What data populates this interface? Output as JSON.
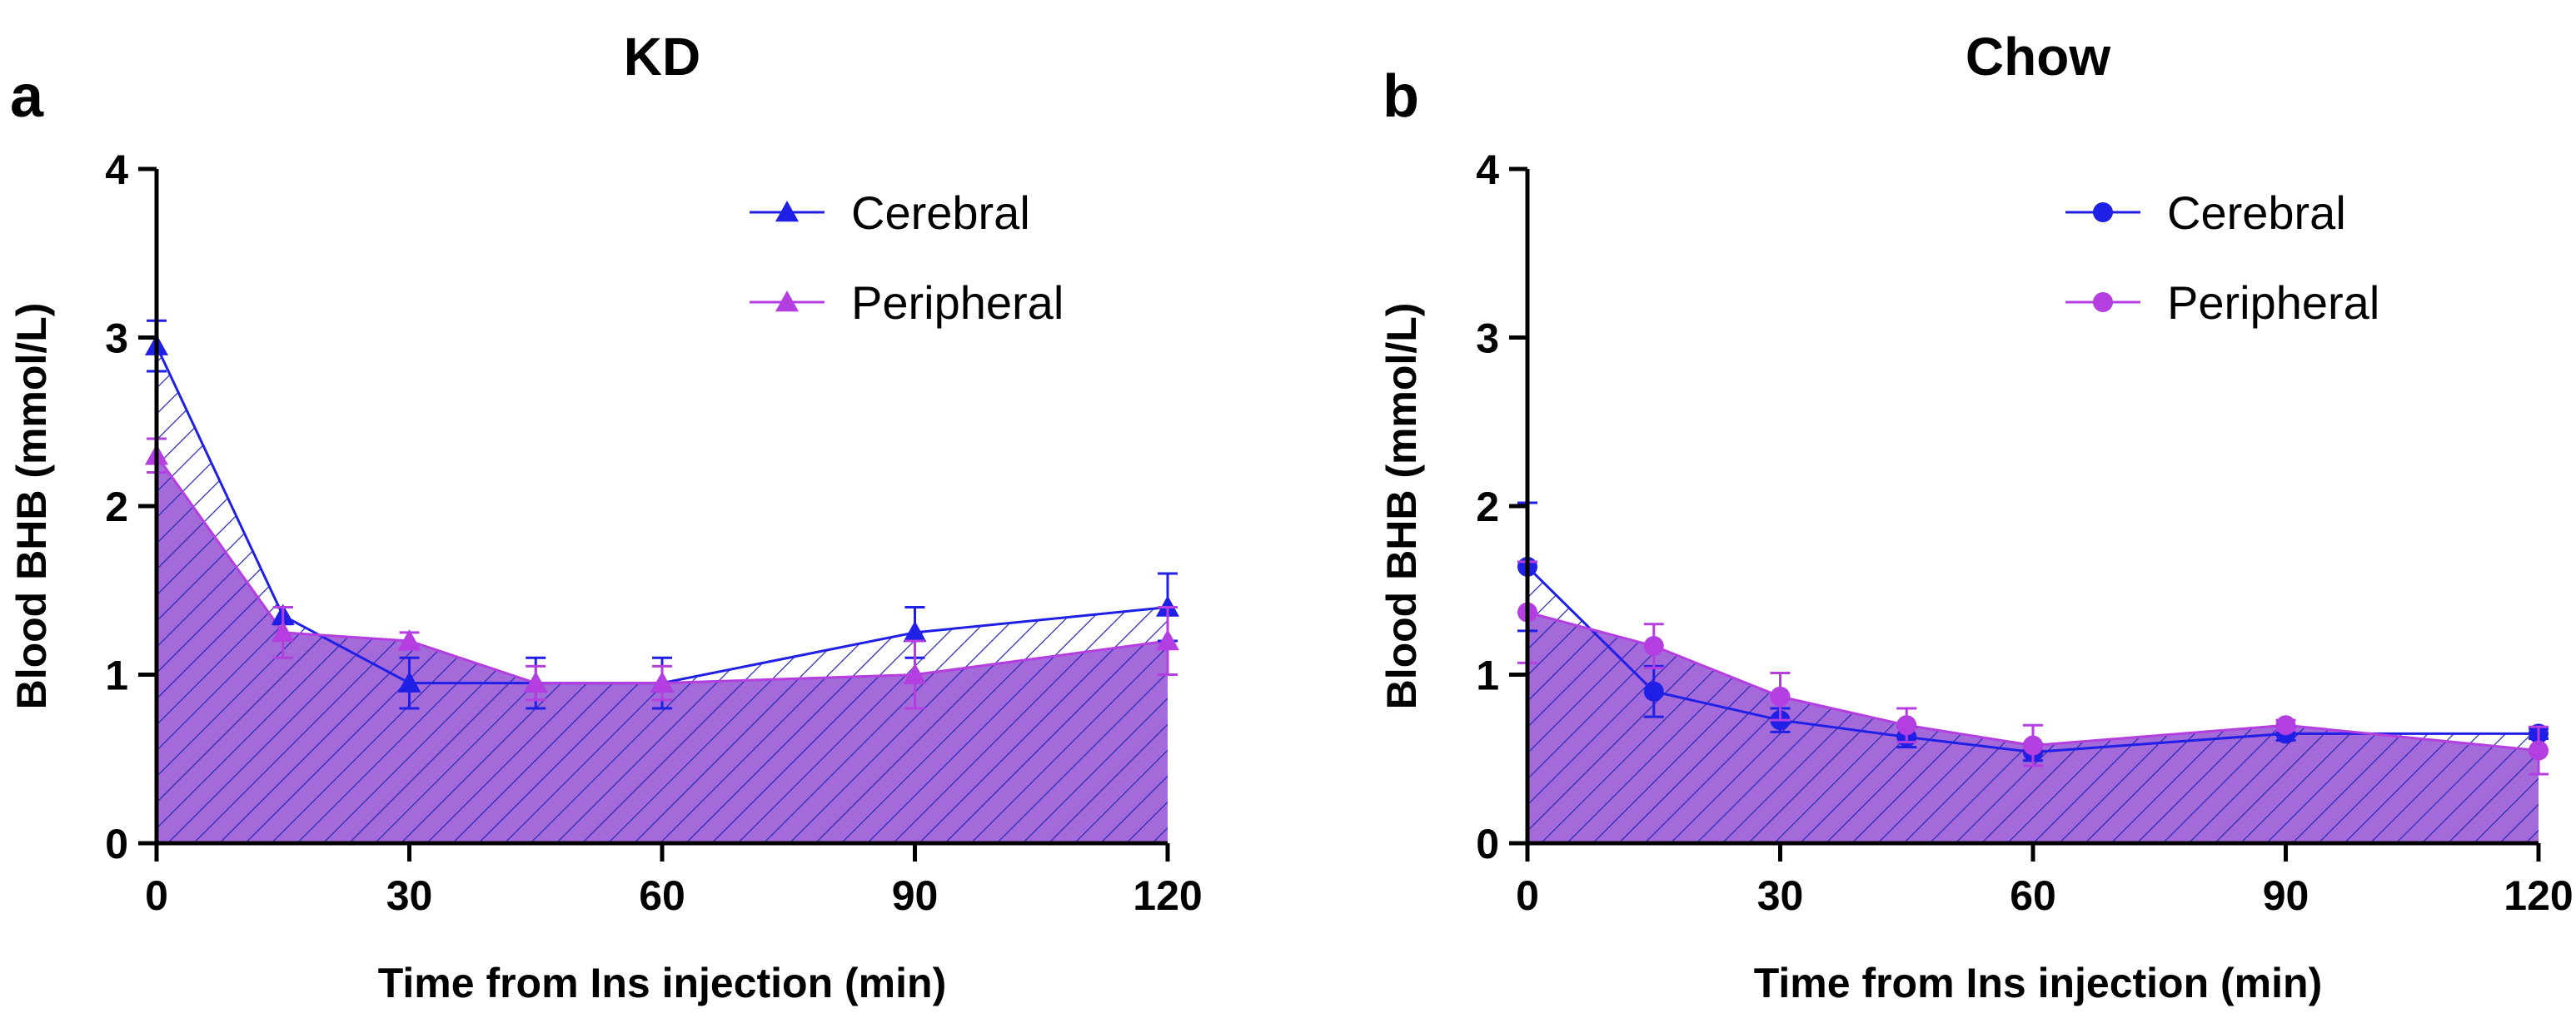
{
  "colors": {
    "cerebral": "#1f1fe6",
    "peripheral": "#b43ee0",
    "peripheral_fill": "#a46ad9",
    "hatch": "#2a2ab8",
    "axis": "#000000"
  },
  "chart_data": [
    {
      "type": "area",
      "panel_letter": "a",
      "title": "KD",
      "xlabel": "Time from Ins injection (min)",
      "ylabel": "Blood BHB (mmol/L)",
      "xlim": [
        0,
        120
      ],
      "ylim": [
        0,
        4
      ],
      "xticks": [
        0,
        30,
        60,
        90,
        120
      ],
      "yticks": [
        0,
        1,
        2,
        3,
        4
      ],
      "x_tick_labels": [
        "0",
        "30",
        "60",
        "90",
        "120"
      ],
      "y_tick_labels": [
        "0",
        "1",
        "2",
        "3",
        "4"
      ],
      "legend_position": "top-right",
      "marker": "triangle",
      "x": [
        0,
        15,
        30,
        45,
        60,
        90,
        120
      ],
      "series": [
        {
          "name": "Cerebral",
          "color_key": "cerebral",
          "values": [
            2.95,
            1.35,
            0.95,
            0.95,
            0.95,
            1.25,
            1.4
          ],
          "errors": [
            0.15,
            0.05,
            0.15,
            0.15,
            0.15,
            0.15,
            0.2
          ]
        },
        {
          "name": "Peripheral",
          "color_key": "peripheral",
          "values": [
            2.3,
            1.25,
            1.2,
            0.95,
            0.95,
            1.0,
            1.2
          ],
          "errors": [
            0.1,
            0.15,
            0.05,
            0.1,
            0.1,
            0.2,
            0.2
          ]
        }
      ]
    },
    {
      "type": "area",
      "panel_letter": "b",
      "title": "Chow",
      "xlabel": "Time from Ins injection (min)",
      "ylabel": "Blood BHB (mmol/L)",
      "xlim": [
        0,
        120
      ],
      "ylim": [
        0,
        4
      ],
      "xticks": [
        0,
        30,
        60,
        90,
        120
      ],
      "yticks": [
        0,
        1,
        2,
        3,
        4
      ],
      "x_tick_labels": [
        "0",
        "30",
        "60",
        "90",
        "120"
      ],
      "y_tick_labels": [
        "0",
        "1",
        "2",
        "3",
        "4"
      ],
      "legend_position": "top-right",
      "marker": "circle",
      "x": [
        0,
        15,
        30,
        45,
        60,
        90,
        120
      ],
      "series": [
        {
          "name": "Cerebral",
          "color_key": "cerebral",
          "values": [
            1.64,
            0.9,
            0.73,
            0.63,
            0.54,
            0.65,
            0.65
          ],
          "errors": [
            0.38,
            0.15,
            0.07,
            0.06,
            0.05,
            0.04,
            0.03
          ]
        },
        {
          "name": "Peripheral",
          "color_key": "peripheral",
          "values": [
            1.37,
            1.17,
            0.87,
            0.7,
            0.58,
            0.7,
            0.55
          ],
          "errors": [
            0.3,
            0.13,
            0.14,
            0.1,
            0.12,
            0.03,
            0.14
          ]
        }
      ]
    }
  ]
}
